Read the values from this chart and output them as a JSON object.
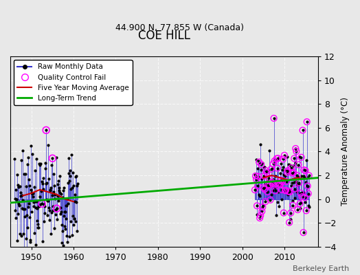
{
  "title": "COE HILL",
  "subtitle": "44.900 N, 77.855 W (Canada)",
  "credit": "Berkeley Earth",
  "ylabel": "Temperature Anomaly (°C)",
  "xlim": [
    1945,
    2018
  ],
  "ylim": [
    -4,
    12
  ],
  "yticks": [
    -4,
    -2,
    0,
    2,
    4,
    6,
    8,
    10,
    12
  ],
  "xticks": [
    1950,
    1960,
    1970,
    1980,
    1990,
    2000,
    2010
  ],
  "bg_color": "#e8e8e8",
  "raw_color": "#3333cc",
  "ma_color": "#cc0000",
  "trend_color": "#00aa00",
  "qc_color": "#ff00ff",
  "trend_x": [
    1945,
    2018
  ],
  "trend_y": [
    -0.3,
    1.8
  ]
}
